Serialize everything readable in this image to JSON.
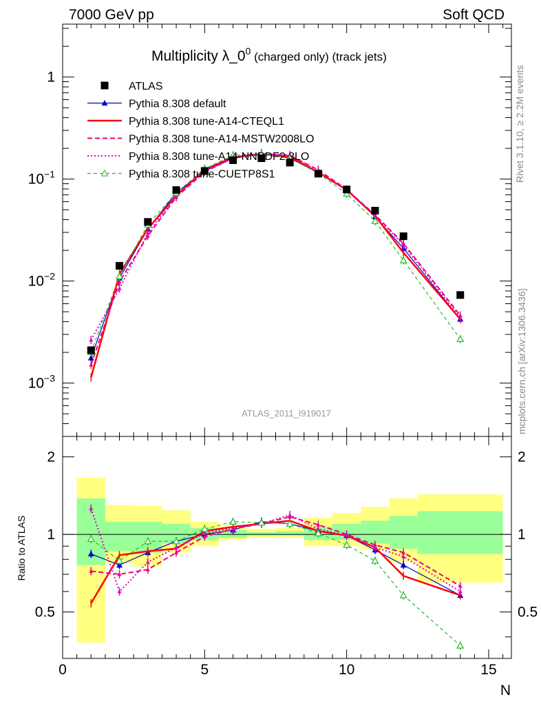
{
  "header": {
    "left": "7000 GeV pp",
    "right": "Soft QCD"
  },
  "title": {
    "main": "Multiplicity λ_0",
    "sup": "0",
    "sub": " (charged only) (track jets)"
  },
  "side_labels": {
    "rivet": "Rivet 3.1.10, ≥ 2.2M events",
    "mcplots": "mcplots.cern.ch [arXiv:1306.3436]"
  },
  "watermark": "ATLAS_2011_I919017",
  "ratio_ylabel": "Ratio to ATLAS",
  "xlabel": "N",
  "main_yticks": [
    {
      "value": 1,
      "base": "1",
      "exp": ""
    },
    {
      "value": 0.1,
      "base": "10",
      "exp": "−1"
    },
    {
      "value": 0.01,
      "base": "10",
      "exp": "−2"
    },
    {
      "value": 0.001,
      "base": "10",
      "exp": "−3"
    }
  ],
  "ratio_yticks": [
    "0.5",
    "1",
    "2"
  ],
  "xticks": [
    "0",
    "5",
    "10",
    "15"
  ],
  "legend": [
    {
      "label": "ATLAS",
      "color": "#000000",
      "style": "marker-square"
    },
    {
      "label": "Pythia 8.308 default",
      "color": "#0000cc",
      "style": "solid-triangle"
    },
    {
      "label": "Pythia 8.308 tune-A14-CTEQL1",
      "color": "#ff0000",
      "style": "solid-thick"
    },
    {
      "label": "Pythia 8.308 tune-A14-MSTW2008LO",
      "color": "#ee0077",
      "style": "dashed"
    },
    {
      "label": "Pythia 8.308 tune-A14-NNPDF2.3LO",
      "color": "#dd00cc",
      "style": "dotted"
    },
    {
      "label": "Pythia 8.308 tune-CUETP8S1",
      "color": "#22bb22",
      "style": "dashed-open-triangle"
    }
  ],
  "chart_data": {
    "type": "line",
    "xlim": [
      0,
      15.8
    ],
    "ylim_main": [
      0.0003,
      3.3
    ],
    "ylog_main": true,
    "ylim_ratio": [
      0.33,
      2.4
    ],
    "ylog_ratio": true,
    "x": [
      1,
      2,
      3,
      4,
      5,
      6,
      7,
      8,
      9,
      10,
      11,
      12,
      14
    ],
    "atlas": [
      0.0021,
      0.0141,
      0.038,
      0.078,
      0.12,
      0.153,
      0.16,
      0.145,
      0.113,
      0.079,
      0.049,
      0.0275,
      0.0073
    ],
    "series": [
      {
        "name": "Pythia 8.308 default",
        "ratio": [
          0.84,
          0.76,
          0.85,
          0.94,
          1.0,
          1.04,
          1.12,
          1.1,
          1.03,
          0.99,
          0.87,
          0.76,
          0.58
        ]
      },
      {
        "name": "Pythia 8.308 tune-A14-CTEQL1",
        "ratio": [
          0.54,
          0.83,
          0.86,
          0.88,
          1.03,
          1.07,
          1.1,
          1.13,
          1.03,
          0.99,
          0.89,
          0.69,
          0.58
        ]
      },
      {
        "name": "Pythia 8.308 tune-A14-MSTW2008LO",
        "ratio": [
          0.72,
          0.7,
          0.73,
          0.85,
          0.98,
          1.05,
          1.1,
          1.17,
          1.09,
          1.0,
          0.91,
          0.85,
          0.63
        ]
      },
      {
        "name": "Pythia 8.308 tune-A14-NNPDF2.3LO",
        "ratio": [
          1.26,
          0.6,
          0.78,
          0.89,
          1.01,
          1.06,
          1.1,
          1.19,
          1.05,
          0.99,
          0.89,
          0.82,
          0.6
        ]
      },
      {
        "name": "Pythia 8.308 tune-CUETP8S1",
        "ratio": [
          0.96,
          0.79,
          0.94,
          0.94,
          1.05,
          1.12,
          1.11,
          1.1,
          1.01,
          0.91,
          0.79,
          0.58,
          0.37
        ]
      }
    ],
    "bands": {
      "edges": [
        0.5,
        1.5,
        2.5,
        3.5,
        4.5,
        5.5,
        6.5,
        7.5,
        8.5,
        9.5,
        10.5,
        11.5,
        12.5,
        15.5
      ],
      "yellow_lo": [
        0.38,
        0.77,
        0.75,
        0.85,
        0.9,
        0.95,
        0.97,
        0.97,
        0.9,
        0.9,
        0.87,
        0.78,
        0.65
      ],
      "yellow_hi": [
        1.66,
        1.3,
        1.29,
        1.24,
        1.12,
        1.08,
        1.05,
        1.06,
        1.16,
        1.21,
        1.28,
        1.38,
        1.43
      ],
      "green_lo": [
        0.76,
        0.86,
        0.85,
        0.92,
        0.95,
        0.97,
        0.99,
        0.99,
        0.95,
        0.95,
        0.92,
        0.88,
        0.84
      ],
      "green_hi": [
        1.38,
        1.12,
        1.12,
        1.1,
        1.06,
        1.04,
        1.02,
        1.03,
        1.07,
        1.1,
        1.13,
        1.18,
        1.23
      ]
    }
  }
}
